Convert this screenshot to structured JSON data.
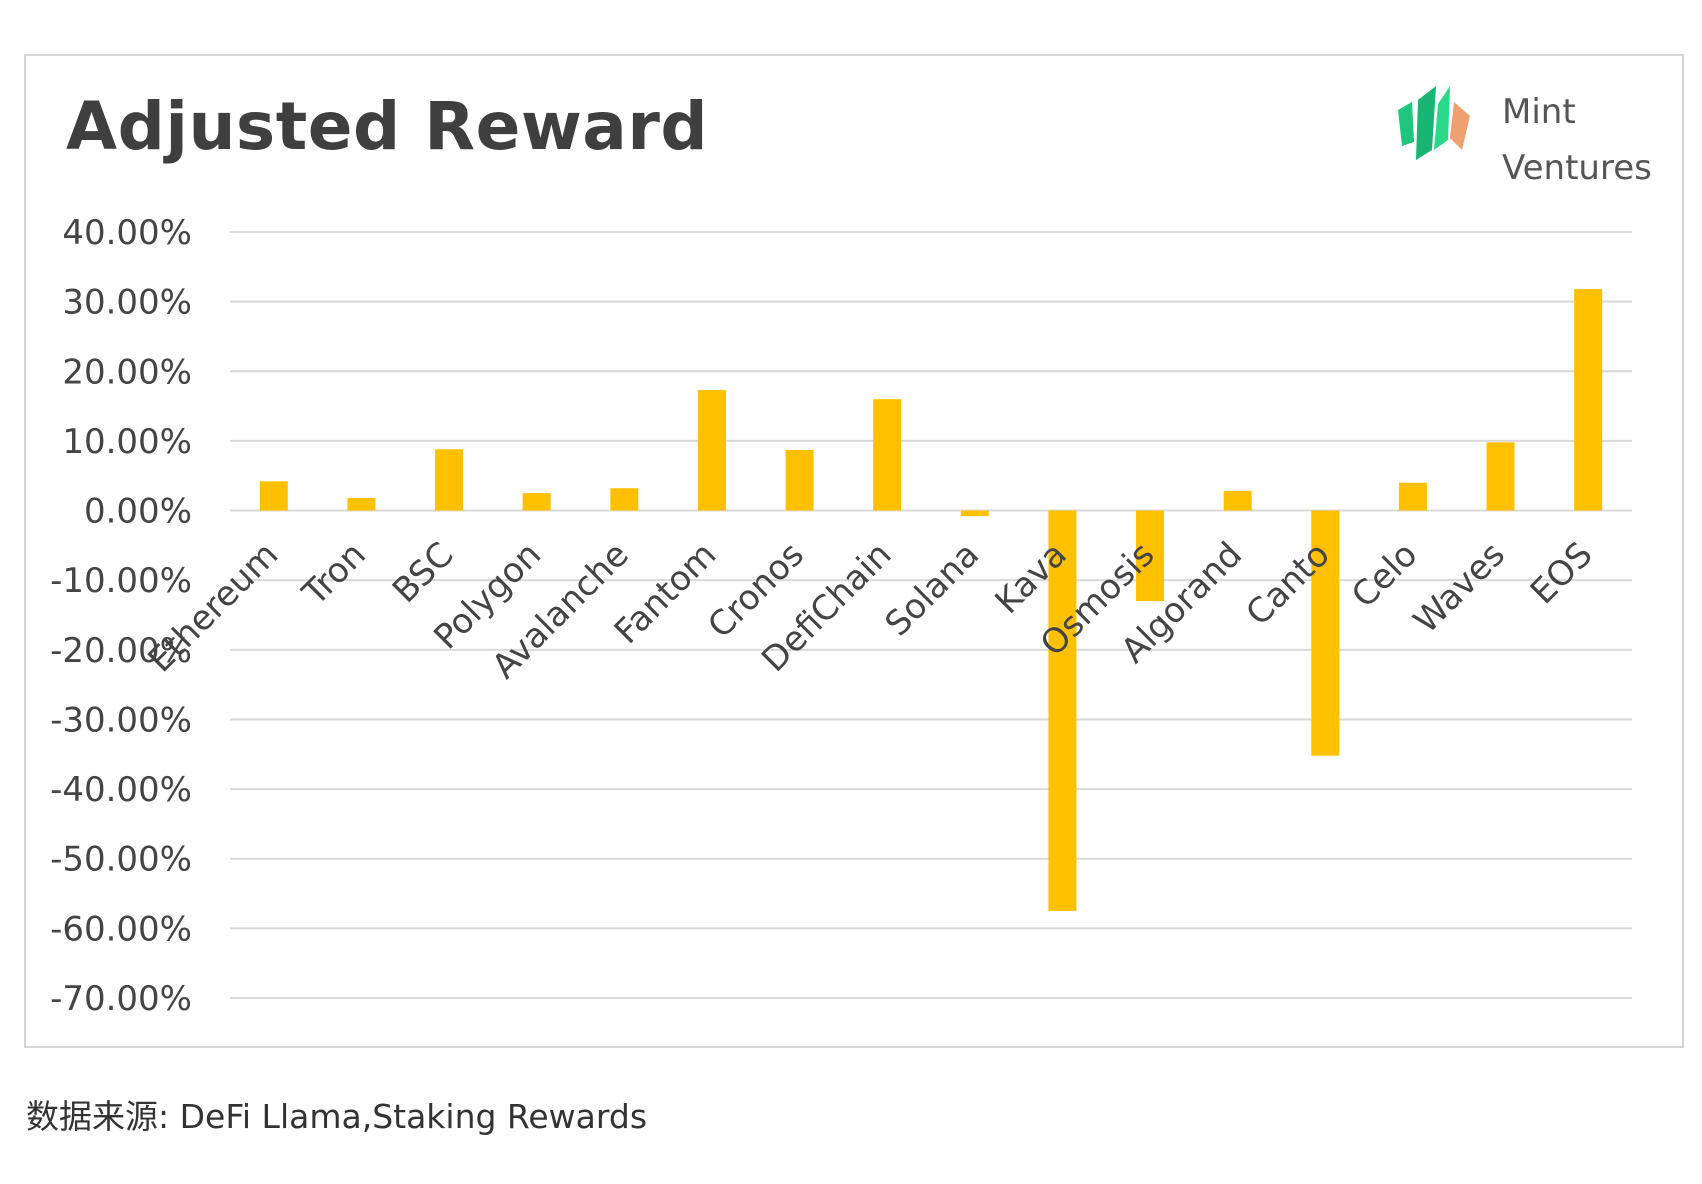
{
  "chart_data": {
    "type": "bar",
    "title": "Adjusted Reward",
    "xlabel": "",
    "ylabel": "",
    "ylim": [
      -0.7,
      0.4
    ],
    "y_ticks": [
      0.4,
      0.3,
      0.2,
      0.1,
      0.0,
      -0.1,
      -0.2,
      -0.3,
      -0.4,
      -0.5,
      -0.6,
      -0.7
    ],
    "y_tick_labels": [
      "40.00%",
      "30.00%",
      "20.00%",
      "10.00%",
      "0.00%",
      "-10.00%",
      "-20.00%",
      "-30.00%",
      "-40.00%",
      "-50.00%",
      "-60.00%",
      "-70.00%"
    ],
    "categories": [
      "Ethereum",
      "Tron",
      "BSC",
      "Polygon",
      "Avalanche",
      "Fantom",
      "Cronos",
      "DefiChain",
      "Solana",
      "Kava",
      "Osmosis",
      "Algorand",
      "Canto",
      "Celo",
      "Waves",
      "EOS"
    ],
    "values": [
      0.042,
      0.018,
      0.088,
      0.025,
      0.032,
      0.173,
      0.087,
      0.16,
      -0.008,
      -0.575,
      -0.13,
      0.028,
      -0.352,
      0.04,
      0.098,
      0.318
    ],
    "grid": true,
    "legend": "none",
    "bar_color": "#FFC000",
    "grid_color": "#d9d9d9"
  },
  "logo": {
    "line1": "Mint",
    "line2": "Ventures",
    "green": "#1fc77e",
    "orange": "#f0a070"
  },
  "footer": {
    "source": "数据来源: DeFi Llama,Staking Rewards"
  }
}
